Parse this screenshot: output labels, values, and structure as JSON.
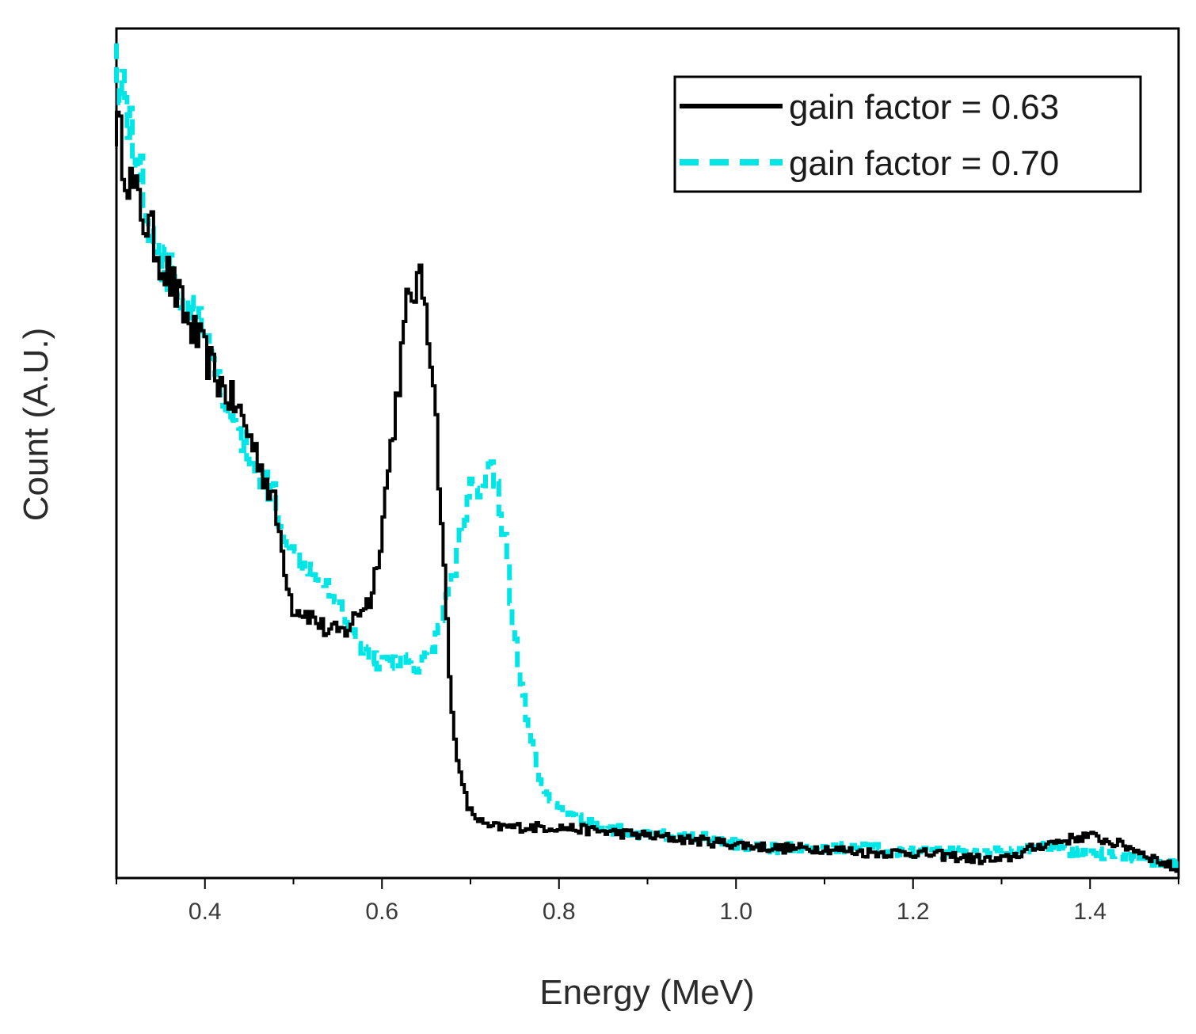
{
  "chart_data": {
    "type": "line",
    "title": "",
    "xlabel": "Energy (MeV)",
    "ylabel": "Count (A.U.)",
    "xlim": [
      0.3,
      1.5
    ],
    "ylim": [
      0,
      100
    ],
    "x_ticks": [
      0.4,
      0.6,
      0.8,
      1.0,
      1.2,
      1.4
    ],
    "x_tick_labels": [
      "0.4",
      "0.6",
      "0.8",
      "1.0",
      "1.2",
      "1.4"
    ],
    "y_ticks_shown": false,
    "grid": false,
    "legend_position": "top-right",
    "series": [
      {
        "name": "gain factor = 0.63",
        "color": "#000000",
        "style": "solid",
        "x": [
          0.3,
          0.32,
          0.34,
          0.36,
          0.38,
          0.4,
          0.42,
          0.44,
          0.46,
          0.48,
          0.5,
          0.52,
          0.54,
          0.56,
          0.58,
          0.59,
          0.6,
          0.61,
          0.62,
          0.63,
          0.64,
          0.65,
          0.66,
          0.67,
          0.68,
          0.69,
          0.7,
          0.72,
          0.74,
          0.76,
          0.78,
          0.8,
          0.85,
          0.9,
          0.95,
          1.0,
          1.05,
          1.1,
          1.15,
          1.2,
          1.25,
          1.3,
          1.35,
          1.4,
          1.45,
          1.5
        ],
        "values": [
          89,
          81,
          76,
          71,
          66,
          62,
          58,
          55,
          50,
          44,
          32,
          31,
          29,
          29,
          32,
          33,
          40,
          49,
          58,
          67,
          70,
          69,
          59,
          40,
          20,
          12,
          8,
          6,
          6,
          6,
          6,
          6,
          5.5,
          5,
          4.5,
          4,
          3.5,
          3.5,
          3,
          3,
          2.5,
          2,
          4,
          5,
          3.5,
          1
        ]
      },
      {
        "name": "gain factor = 0.70",
        "color": "#00e6e6",
        "style": "dashed",
        "x": [
          0.3,
          0.32,
          0.34,
          0.36,
          0.38,
          0.4,
          0.42,
          0.44,
          0.46,
          0.48,
          0.5,
          0.52,
          0.54,
          0.56,
          0.58,
          0.6,
          0.62,
          0.64,
          0.66,
          0.68,
          0.7,
          0.72,
          0.73,
          0.74,
          0.75,
          0.76,
          0.78,
          0.8,
          0.85,
          0.9,
          0.95,
          1.0,
          1.05,
          1.1,
          1.15,
          1.2,
          1.25,
          1.3,
          1.35,
          1.4,
          1.45,
          1.5
        ],
        "values": [
          98,
          87,
          77,
          71,
          68,
          64,
          57,
          52,
          48,
          45,
          38,
          37,
          35,
          31,
          27,
          25,
          26,
          25,
          27,
          35,
          45,
          48,
          48,
          40,
          30,
          22,
          11,
          8,
          6,
          5,
          5,
          4,
          3.5,
          3.5,
          3.5,
          3,
          3,
          3,
          3.5,
          3,
          2.5,
          1.5
        ]
      }
    ]
  }
}
